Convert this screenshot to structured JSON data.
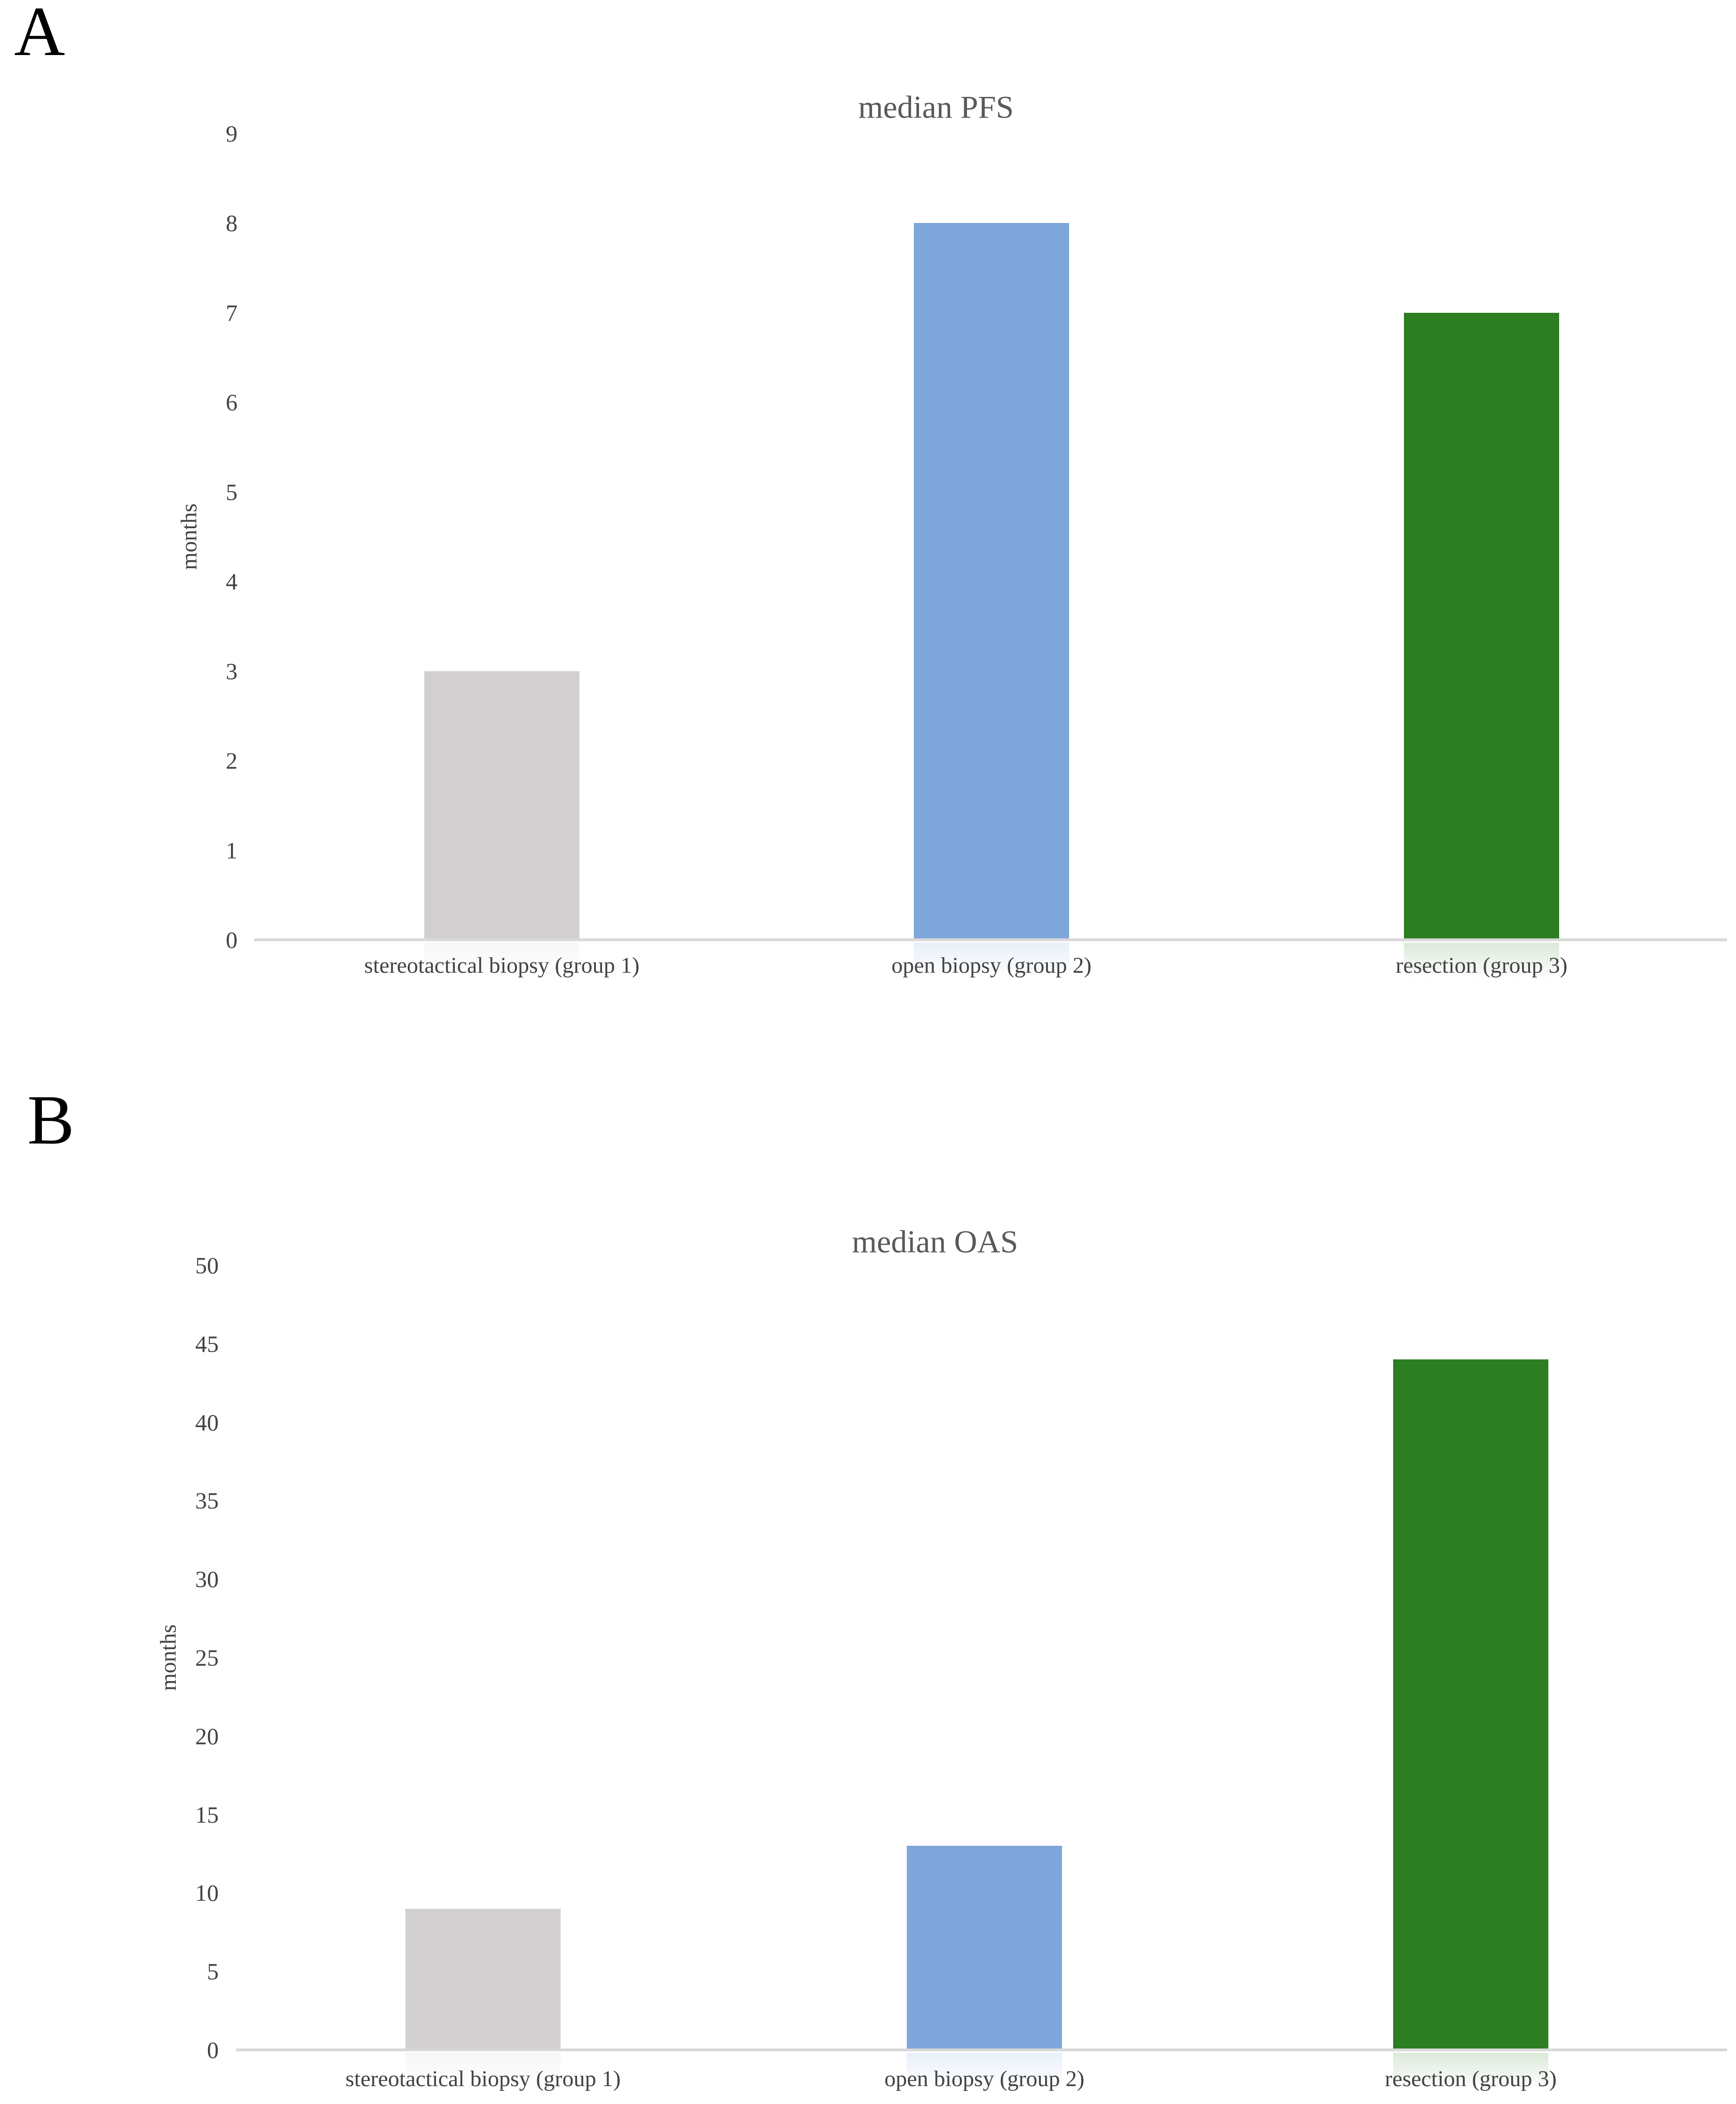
{
  "figure": {
    "background": "#ffffff",
    "panel_count": 2
  },
  "chart_data": [
    {
      "type": "bar",
      "panel_label": "A",
      "title": "median PFS",
      "xlabel": "",
      "ylabel": "months",
      "categories": [
        "stereotactical biopsy (group 1)",
        "open biopsy (group 2)",
        "resection (group 3)"
      ],
      "values": [
        3,
        8,
        7
      ],
      "bar_colors": [
        "#d2cfd0",
        "#7ea6db",
        "#2d7d22"
      ],
      "ylim": [
        0,
        9
      ],
      "yticks": [
        0,
        1,
        2,
        3,
        4,
        5,
        6,
        7,
        8,
        9
      ],
      "grid": false,
      "legend": false
    },
    {
      "type": "bar",
      "panel_label": "B",
      "title": "median OAS",
      "xlabel": "",
      "ylabel": "months",
      "categories": [
        "stereotactical biopsy (group 1)",
        "open biopsy (group 2)",
        "resection (group 3)"
      ],
      "values": [
        9,
        13,
        44
      ],
      "bar_colors": [
        "#d2cfd0",
        "#7ea6db",
        "#2d7d22"
      ],
      "ylim": [
        0,
        50
      ],
      "yticks": [
        0,
        5,
        10,
        15,
        20,
        25,
        30,
        35,
        40,
        45,
        50
      ],
      "grid": false,
      "legend": false
    }
  ],
  "palette": {
    "group1_bar": "#d2cfd0",
    "group2_bar": "#7ea6db",
    "group3_bar": "#2d7d22",
    "axis_line": "#d9d9d9",
    "title_text": "#595959",
    "tick_text": "#434343",
    "panel_letter": "#000000"
  }
}
